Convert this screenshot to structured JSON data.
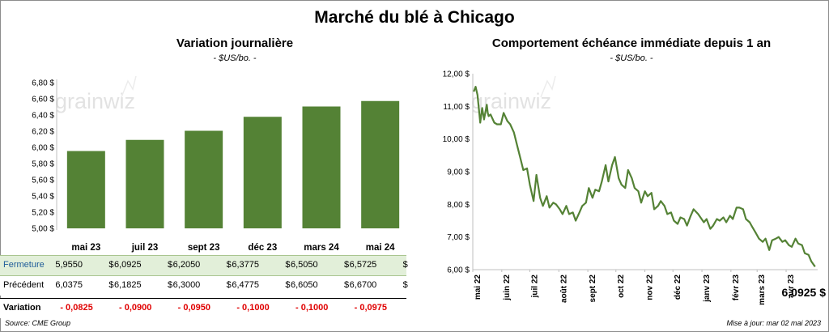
{
  "title": "Marché du blé à Chicago",
  "left_chart": {
    "title": "Variation  journalière",
    "unit": "- $US/bo. -"
  },
  "right_chart": {
    "title": "Comportement  échéance immédiate depuis 1 an",
    "unit": "- $US/bo. -",
    "last_value_label": "6,0925 $"
  },
  "watermark": "grainwiz",
  "table": {
    "row_labels": {
      "close": "Fermeture",
      "previous": "Précédent",
      "variation": "Variation"
    },
    "close": [
      "5,9550",
      "6,0925",
      "6,2050",
      "6,3775",
      "6,5050",
      "6,5725"
    ],
    "previous": [
      "6,0375",
      "6,1825",
      "6,3000",
      "6,4775",
      "6,6050",
      "6,6700"
    ],
    "variation": [
      "- 0,0825",
      "- 0,0900",
      "- 0,0950",
      "- 0,1000",
      "- 0,1000",
      "- 0,0975"
    ],
    "currency": "$"
  },
  "source": "Source: CME Group",
  "updated": "Mise à jour: mar 02 mai 2023",
  "colors": {
    "bar": "#548235",
    "line": "#548235",
    "close_row_bg": "#e2efd9",
    "negative": "#e00000"
  },
  "chart_data": [
    {
      "type": "bar",
      "title": "Variation  journalière",
      "ylabel": "- $US/bo. -",
      "categories": [
        "mai 23",
        "juil 23",
        "sept 23",
        "déc 23",
        "mars 24",
        "mai 24"
      ],
      "values": [
        5.955,
        6.0925,
        6.205,
        6.3775,
        6.505,
        6.5725
      ],
      "ylim": [
        5.0,
        6.8
      ],
      "yticks": [
        "5,00 $",
        "5,20 $",
        "5,40 $",
        "5,60 $",
        "5,80 $",
        "6,00 $",
        "6,20 $",
        "6,40 $",
        "6,60 $",
        "6,80 $"
      ],
      "grid": false
    },
    {
      "type": "line",
      "title": "Comportement  échéance immédiate depuis 1 an",
      "ylabel": "- $US/bo. -",
      "ylim": [
        6.0,
        12.0
      ],
      "yticks": [
        "6,00 $",
        "7,00 $",
        "8,00 $",
        "9,00 $",
        "10,00 $",
        "11,00 $",
        "12,00 $"
      ],
      "x_ticks": [
        "mai 22",
        "juin 22",
        "juil 22",
        "août 22",
        "sept 22",
        "oct 22",
        "nov 22",
        "déc 22",
        "janv 23",
        "févr 23",
        "mars 23",
        "avr 23"
      ],
      "grid": false,
      "x": [
        "2022-05-02",
        "2022-05-04",
        "2022-05-06",
        "2022-05-09",
        "2022-05-11",
        "2022-05-13",
        "2022-05-16",
        "2022-05-17",
        "2022-05-18",
        "2022-05-20",
        "2022-05-24",
        "2022-05-27",
        "2022-05-31",
        "2022-06-03",
        "2022-06-07",
        "2022-06-10",
        "2022-06-14",
        "2022-06-17",
        "2022-06-21",
        "2022-06-24",
        "2022-06-28",
        "2022-07-01",
        "2022-07-05",
        "2022-07-08",
        "2022-07-12",
        "2022-07-15",
        "2022-07-19",
        "2022-07-22",
        "2022-07-26",
        "2022-07-29",
        "2022-08-02",
        "2022-08-05",
        "2022-08-09",
        "2022-08-12",
        "2022-08-16",
        "2022-08-19",
        "2022-08-23",
        "2022-08-26",
        "2022-08-30",
        "2022-09-02",
        "2022-09-06",
        "2022-09-09",
        "2022-09-13",
        "2022-09-16",
        "2022-09-20",
        "2022-09-23",
        "2022-09-27",
        "2022-09-30",
        "2022-10-04",
        "2022-10-07",
        "2022-10-11",
        "2022-10-14",
        "2022-10-18",
        "2022-10-21",
        "2022-10-25",
        "2022-10-28",
        "2022-11-01",
        "2022-11-04",
        "2022-11-08",
        "2022-11-11",
        "2022-11-15",
        "2022-11-18",
        "2022-11-22",
        "2022-11-25",
        "2022-11-29",
        "2022-12-02",
        "2022-12-06",
        "2022-12-09",
        "2022-12-13",
        "2022-12-16",
        "2022-12-20",
        "2022-12-23",
        "2022-12-28",
        "2023-01-03",
        "2023-01-06",
        "2023-01-10",
        "2023-01-13",
        "2023-01-17",
        "2023-01-20",
        "2023-01-24",
        "2023-01-27",
        "2023-01-31",
        "2023-02-03",
        "2023-02-07",
        "2023-02-10",
        "2023-02-14",
        "2023-02-17",
        "2023-02-21",
        "2023-02-24",
        "2023-02-28",
        "2023-03-03",
        "2023-03-07",
        "2023-03-10",
        "2023-03-14",
        "2023-03-17",
        "2023-03-21",
        "2023-03-24",
        "2023-03-28",
        "2023-03-31",
        "2023-04-04",
        "2023-04-07",
        "2023-04-11",
        "2023-04-14",
        "2023-04-18",
        "2023-04-21",
        "2023-04-25",
        "2023-04-28",
        "2023-05-02"
      ],
      "values": [
        11.45,
        11.6,
        11.35,
        10.5,
        10.95,
        10.6,
        11.05,
        10.8,
        10.7,
        10.75,
        10.5,
        10.45,
        10.45,
        10.8,
        10.55,
        10.45,
        10.2,
        9.85,
        9.4,
        9.05,
        9.1,
        8.6,
        8.1,
        8.9,
        8.2,
        7.95,
        8.25,
        7.9,
        8.05,
        8.0,
        7.85,
        7.7,
        7.95,
        7.7,
        7.75,
        7.5,
        7.75,
        7.95,
        8.05,
        8.5,
        8.2,
        8.45,
        8.4,
        8.7,
        9.2,
        8.7,
        9.2,
        9.45,
        8.8,
        8.6,
        8.5,
        9.05,
        8.8,
        8.5,
        8.4,
        8.05,
        8.4,
        8.25,
        8.35,
        7.85,
        7.95,
        8.1,
        7.95,
        7.7,
        7.75,
        7.5,
        7.4,
        7.6,
        7.55,
        7.35,
        7.65,
        7.85,
        7.7,
        7.45,
        7.55,
        7.25,
        7.35,
        7.55,
        7.5,
        7.6,
        7.45,
        7.65,
        7.55,
        7.9,
        7.9,
        7.85,
        7.55,
        7.45,
        7.3,
        7.1,
        6.95,
        6.85,
        6.95,
        6.6,
        6.9,
        6.95,
        7.0,
        6.85,
        6.9,
        6.75,
        6.7,
        6.95,
        6.8,
        6.75,
        6.5,
        6.45,
        6.25,
        6.0925
      ]
    }
  ]
}
